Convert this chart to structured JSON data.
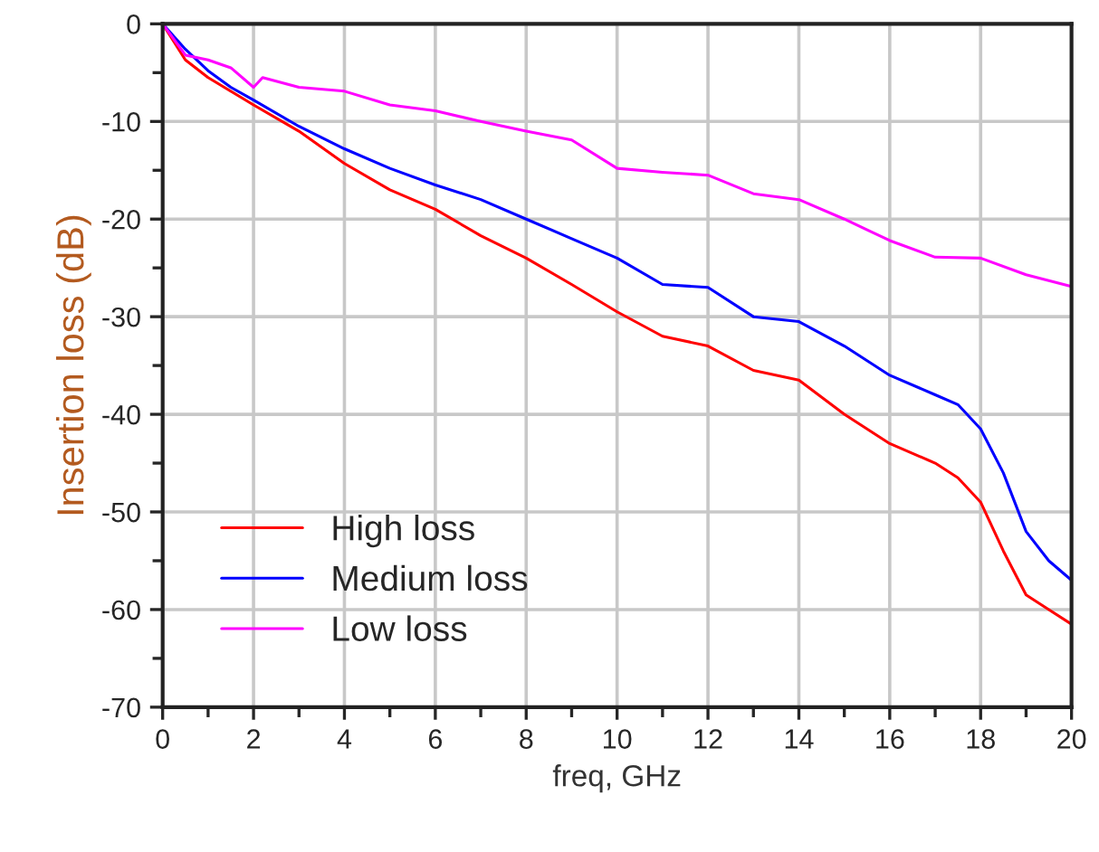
{
  "chart_data": {
    "type": "line",
    "xlabel": "freq, GHz",
    "ylabel": "Insertion loss (dB)",
    "xlim": [
      0,
      20
    ],
    "ylim": [
      -70,
      0
    ],
    "xticks": [
      0,
      {
        "value": 1,
        "label": null
      },
      2,
      {
        "value": 3,
        "label": null
      },
      4,
      {
        "value": 5,
        "label": null
      },
      6,
      {
        "value": 7,
        "label": null
      },
      8,
      {
        "value": 9,
        "label": null
      },
      10,
      {
        "value": 11,
        "label": null
      },
      12,
      {
        "value": 13,
        "label": null
      },
      14,
      {
        "value": 15,
        "label": null
      },
      16,
      {
        "value": 17,
        "label": null
      },
      18,
      {
        "value": 19,
        "label": null
      },
      20
    ],
    "yticks": [
      -70,
      {
        "value": -65,
        "label": null
      },
      -60,
      {
        "value": -55,
        "label": null
      },
      -50,
      {
        "value": -45,
        "label": null
      },
      -40,
      {
        "value": -35,
        "label": null
      },
      -30,
      {
        "value": -25,
        "label": null
      },
      -20,
      {
        "value": -15,
        "label": null
      },
      -10,
      {
        "value": -5,
        "label": null
      },
      0
    ],
    "grid": true,
    "legend": "bottom left",
    "line_style": "solid",
    "marker": "none",
    "series": [
      {
        "name": "High loss",
        "color": "#ff0000",
        "x": [
          0,
          0.5,
          1,
          2,
          3,
          4,
          5,
          6,
          7,
          8,
          9,
          10,
          11,
          12,
          13,
          14,
          15,
          16,
          17,
          17.5,
          18,
          18.5,
          19,
          19.5,
          20
        ],
        "values": [
          0,
          -3.7,
          -5.5,
          -8.3,
          -11,
          -14.3,
          -17,
          -19,
          -21.7,
          -24,
          -26.7,
          -29.5,
          -32,
          -33,
          -35.5,
          -36.5,
          -40,
          -43,
          -45,
          -46.5,
          -49,
          -54,
          -58.5,
          -60,
          -61.5
        ]
      },
      {
        "name": "Medium loss",
        "color": "#0000ff",
        "x": [
          0,
          0.5,
          1,
          1.5,
          2,
          3,
          4,
          5,
          6,
          7,
          8,
          9,
          10,
          11,
          12,
          13,
          14,
          15,
          16,
          17,
          17.5,
          18,
          18.5,
          19,
          19.5,
          20
        ],
        "values": [
          0,
          -2.6,
          -4.8,
          -6.5,
          -7.8,
          -10.5,
          -12.8,
          -14.8,
          -16.5,
          -18,
          -20,
          -22,
          -24,
          -26.7,
          -27,
          -30,
          -30.5,
          -33,
          -36,
          -38,
          -39,
          -41.5,
          -46,
          -52,
          -55,
          -57
        ]
      },
      {
        "name": "Low loss",
        "color": "#ff00ff",
        "x": [
          0,
          0.5,
          1,
          1.5,
          2,
          2.2,
          3,
          4,
          5,
          6,
          7,
          8,
          9,
          10,
          11,
          12,
          13,
          14,
          15,
          16,
          17,
          18,
          19,
          20
        ],
        "values": [
          0,
          -3.2,
          -3.7,
          -4.5,
          -6.5,
          -5.5,
          -6.5,
          -6.9,
          -8.3,
          -8.9,
          -10,
          -11,
          -11.9,
          -14.8,
          -15.2,
          -15.5,
          -17.4,
          -18,
          -20,
          -22.2,
          -23.9,
          -24,
          -25.7,
          -26.9
        ]
      }
    ]
  }
}
